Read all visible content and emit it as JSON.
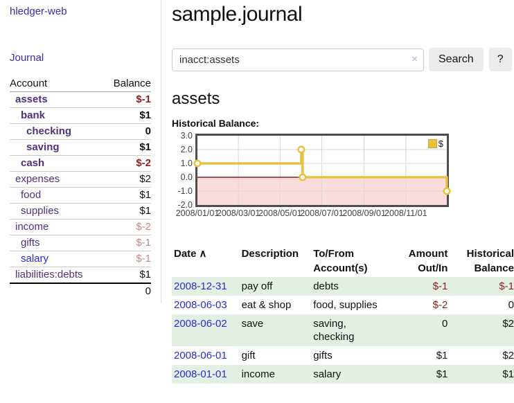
{
  "app": {
    "brand": "hledger-web",
    "nav_journal": "Journal"
  },
  "sidebar": {
    "headers": {
      "account": "Account",
      "balance": "Balance"
    },
    "accounts": [
      {
        "name": "assets",
        "indent": 1,
        "bold": true,
        "link_style": "purple",
        "balance": "$-1",
        "balance_style": "neg"
      },
      {
        "name": "bank",
        "indent": 2,
        "bold": true,
        "link_style": "purple",
        "balance": "$1",
        "balance_style": "default"
      },
      {
        "name": "checking",
        "indent": 3,
        "bold": true,
        "link_style": "purple",
        "balance": "0",
        "balance_style": "default"
      },
      {
        "name": "saving",
        "indent": 3,
        "bold": true,
        "link_style": "purple",
        "balance": "$1",
        "balance_style": "default"
      },
      {
        "name": "cash",
        "indent": 2,
        "bold": true,
        "link_style": "purple",
        "balance": "$-2",
        "balance_style": "neg"
      },
      {
        "name": "expenses",
        "indent": 1,
        "bold": false,
        "link_style": "purple",
        "balance": "$2",
        "balance_style": "default"
      },
      {
        "name": "food",
        "indent": 2,
        "bold": false,
        "link_style": "purple",
        "balance": "$1",
        "balance_style": "default"
      },
      {
        "name": "supplies",
        "indent": 2,
        "bold": false,
        "link_style": "purple",
        "balance": "$1",
        "balance_style": "default"
      },
      {
        "name": "income",
        "indent": 1,
        "bold": false,
        "link_style": "purple",
        "balance": "$-2",
        "balance_style": "neg-muted"
      },
      {
        "name": "gifts",
        "indent": 2,
        "bold": false,
        "link_style": "purple",
        "balance": "$-1",
        "balance_style": "neg-muted"
      },
      {
        "name": "salary",
        "indent": 2,
        "bold": false,
        "link_style": "blue",
        "balance": "$-1",
        "balance_style": "neg-muted"
      },
      {
        "name": "liabilities:debts",
        "indent": 1,
        "bold": false,
        "link_style": "purple",
        "balance": "$1",
        "balance_style": "default"
      }
    ],
    "total": "0"
  },
  "main": {
    "title": "sample.journal",
    "search": {
      "value": "inacct:assets",
      "clear_icon": "×",
      "search_button": "Search",
      "help_button": "?"
    },
    "account_heading": "assets",
    "chart_label": "Historical Balance:"
  },
  "chart_data": {
    "type": "line",
    "title": "Historical Balance:",
    "step": true,
    "x_range": [
      "2008-01-01",
      "2008-12-31"
    ],
    "ylim": [
      -2,
      3
    ],
    "y_ticks": [
      3.0,
      2.0,
      1.0,
      0.0,
      -1.0,
      -2.0
    ],
    "x_ticks": [
      {
        "label": "2008/01/01",
        "date": "2008-01-01"
      },
      {
        "label": "2008/03/01",
        "date": "2008-03-01"
      },
      {
        "label": "2008/05/01",
        "date": "2008-05-01"
      },
      {
        "label": "2008/07/01",
        "date": "2008-07-01"
      },
      {
        "label": "2008/09/01",
        "date": "2008-09-01"
      },
      {
        "label": "2008/11/01",
        "date": "2008-11-01"
      }
    ],
    "series": [
      {
        "name": "$",
        "color": "#e7c13f",
        "points": [
          {
            "x": "2008-01-01",
            "y": 1
          },
          {
            "x": "2008-06-01",
            "y": 2
          },
          {
            "x": "2008-06-03",
            "y": 0
          },
          {
            "x": "2008-12-31",
            "y": -1
          }
        ]
      }
    ],
    "grid": true,
    "legend_position": "top-right",
    "negative_region_fill": "#fbdcdc",
    "zero_line_color": "#8b1a1a",
    "gridline_color": "#d8d8d8"
  },
  "register": {
    "headers": [
      {
        "label": "Date"
      },
      {
        "label": "Description"
      },
      {
        "label": "To/From\nAccount(s)"
      },
      {
        "label": "Amount\nOut/In"
      },
      {
        "label": "Historical\nBalance"
      }
    ],
    "sort_icon": "∧",
    "rows": [
      {
        "date": "2008-12-31",
        "description": "pay off",
        "accounts": "debts",
        "amount": "$-1",
        "amount_style": "neg",
        "balance": "$-1",
        "balance_style": "neg"
      },
      {
        "date": "2008-06-03",
        "description": "eat & shop",
        "accounts": "food, supplies",
        "amount": "$-2",
        "amount_style": "neg",
        "balance": "0",
        "balance_style": "default"
      },
      {
        "date": "2008-06-02",
        "description": "save",
        "accounts": "saving,\nchecking",
        "amount": "0",
        "amount_style": "default",
        "balance": "$2",
        "balance_style": "default"
      },
      {
        "date": "2008-06-01",
        "description": "gift",
        "accounts": "gifts",
        "amount": "$1",
        "amount_style": "default",
        "balance": "$2",
        "balance_style": "default"
      },
      {
        "date": "2008-01-01",
        "description": "income",
        "accounts": "salary",
        "amount": "$1",
        "amount_style": "default",
        "balance": "$1",
        "balance_style": "default"
      }
    ]
  },
  "colors": {
    "brand_link": "#4527ad",
    "account_link": "#503080",
    "account_link_blue": "#2b2bd8",
    "negative": "#8b1e1e",
    "negative_muted": "#c48888",
    "date_link": "#2b2bd5",
    "row_stripe_green": "#e2efe2",
    "button_bg": "#ececec",
    "chart_line": "#e7c13f",
    "chart_negative_fill": "#fbdcdc",
    "chart_zero_line": "#8b1a1a"
  }
}
